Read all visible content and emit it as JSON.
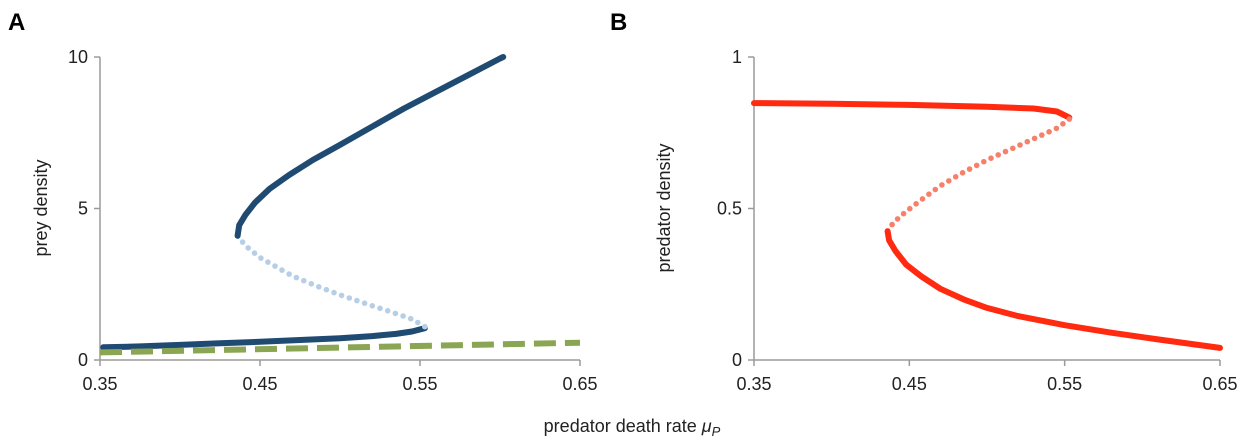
{
  "chart_data": [
    {
      "type": "line",
      "panel": "A",
      "xlabel": "",
      "ylabel": "prey density",
      "xlim": [
        0.35,
        0.65
      ],
      "ylim": [
        0,
        10
      ],
      "x_ticks": [
        "0.35",
        "0.45",
        "0.55",
        "0.65"
      ],
      "y_ticks": [
        "0",
        "5",
        "10"
      ],
      "grid": false,
      "colors": {
        "stable": "#1f4a72",
        "unstable": "#b7cfe6",
        "reference": "#8aa553"
      },
      "series": [
        {
          "style": "solid",
          "color_key": "stable",
          "points": [
            [
              0.352,
              0.42
            ],
            [
              0.375,
              0.45
            ],
            [
              0.4,
              0.5
            ],
            [
              0.425,
              0.55
            ],
            [
              0.45,
              0.6
            ],
            [
              0.475,
              0.66
            ],
            [
              0.5,
              0.72
            ],
            [
              0.52,
              0.79
            ],
            [
              0.535,
              0.86
            ],
            [
              0.545,
              0.94
            ],
            [
              0.553,
              1.05
            ]
          ]
        },
        {
          "style": "dotted",
          "color_key": "unstable",
          "points": [
            [
              0.553,
              1.1
            ],
            [
              0.545,
              1.35
            ],
            [
              0.53,
              1.62
            ],
            [
              0.515,
              1.88
            ],
            [
              0.5,
              2.15
            ],
            [
              0.485,
              2.45
            ],
            [
              0.47,
              2.78
            ],
            [
              0.46,
              3.08
            ],
            [
              0.45,
              3.38
            ],
            [
              0.443,
              3.68
            ],
            [
              0.438,
              3.95
            ],
            [
              0.436,
              4.1
            ]
          ]
        },
        {
          "style": "solid",
          "color_key": "stable",
          "points": [
            [
              0.436,
              4.1
            ],
            [
              0.437,
              4.45
            ],
            [
              0.441,
              4.8
            ],
            [
              0.447,
              5.2
            ],
            [
              0.456,
              5.65
            ],
            [
              0.468,
              6.1
            ],
            [
              0.483,
              6.6
            ],
            [
              0.5,
              7.1
            ],
            [
              0.52,
              7.7
            ],
            [
              0.54,
              8.3
            ],
            [
              0.56,
              8.85
            ],
            [
              0.58,
              9.4
            ],
            [
              0.6,
              9.95
            ],
            [
              0.602,
              10.0
            ]
          ]
        },
        {
          "style": "dashed",
          "color_key": "reference",
          "points": [
            [
              0.35,
              0.25
            ],
            [
              0.65,
              0.57
            ]
          ]
        }
      ]
    },
    {
      "type": "line",
      "panel": "B",
      "xlabel": "",
      "ylabel": "predator density",
      "xlim": [
        0.35,
        0.65
      ],
      "ylim": [
        0,
        1
      ],
      "x_ticks": [
        "0.35",
        "0.45",
        "0.55",
        "0.65"
      ],
      "y_ticks": [
        "0",
        "0.5",
        "1"
      ],
      "grid": false,
      "colors": {
        "stable": "#ff2a10",
        "unstable": "#f7806a"
      },
      "series": [
        {
          "style": "solid",
          "color_key": "stable",
          "points": [
            [
              0.35,
              0.848
            ],
            [
              0.4,
              0.846
            ],
            [
              0.45,
              0.842
            ],
            [
              0.5,
              0.836
            ],
            [
              0.53,
              0.83
            ],
            [
              0.545,
              0.82
            ],
            [
              0.553,
              0.8
            ]
          ]
        },
        {
          "style": "dotted",
          "color_key": "unstable",
          "points": [
            [
              0.553,
              0.795
            ],
            [
              0.545,
              0.765
            ],
            [
              0.53,
              0.73
            ],
            [
              0.515,
              0.695
            ],
            [
              0.5,
              0.66
            ],
            [
              0.485,
              0.62
            ],
            [
              0.47,
              0.575
            ],
            [
              0.458,
              0.53
            ],
            [
              0.448,
              0.49
            ],
            [
              0.44,
              0.455
            ],
            [
              0.436,
              0.425
            ]
          ]
        },
        {
          "style": "solid",
          "color_key": "stable",
          "points": [
            [
              0.436,
              0.425
            ],
            [
              0.437,
              0.395
            ],
            [
              0.441,
              0.36
            ],
            [
              0.448,
              0.315
            ],
            [
              0.458,
              0.275
            ],
            [
              0.47,
              0.235
            ],
            [
              0.485,
              0.2
            ],
            [
              0.5,
              0.172
            ],
            [
              0.52,
              0.145
            ],
            [
              0.55,
              0.115
            ],
            [
              0.58,
              0.09
            ],
            [
              0.61,
              0.068
            ],
            [
              0.63,
              0.054
            ],
            [
              0.65,
              0.04
            ]
          ]
        }
      ]
    }
  ],
  "panels": [
    {
      "letter": "A"
    },
    {
      "letter": "B"
    }
  ],
  "shared_xlabel": "predator death rate ",
  "shared_xlabel_symbol": "μ",
  "shared_xlabel_sub": "P"
}
